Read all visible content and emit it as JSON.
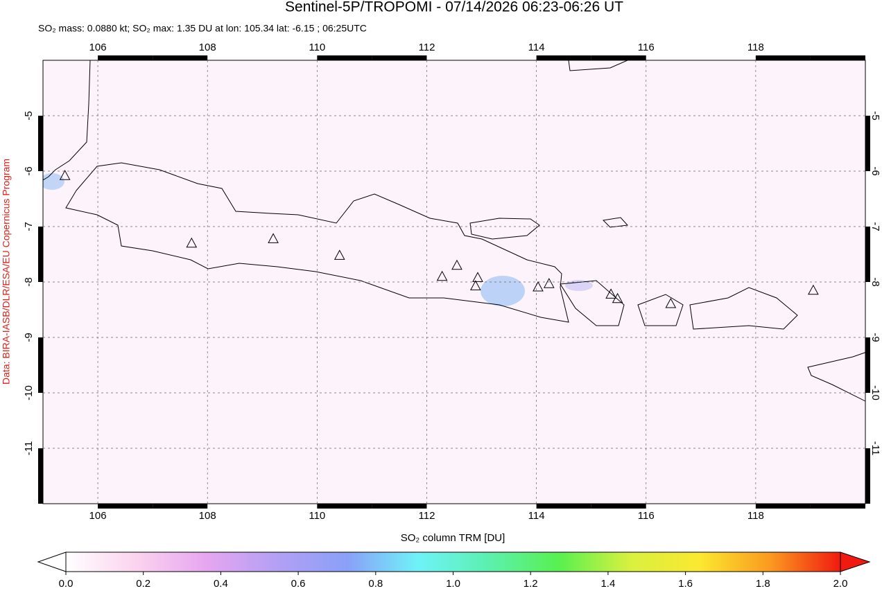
{
  "chart_data": {
    "type": "map",
    "title": "Sentinel-5P/TROPOMI - 07/14/2026 06:23-06:26 UT",
    "subtitle": "SO₂ mass: 0.0880 kt; SO₂ max: 1.35 DU at lon: 105.34 lat: -6.15 ; 06:25UTC",
    "credit": "Data: BIRA-IASB/DLR/ESA/EU Copernicus Program",
    "xlim": [
      105,
      120
    ],
    "ylim": [
      -12,
      -4
    ],
    "xticks": [
      106,
      108,
      110,
      112,
      114,
      116,
      118
    ],
    "yticks": [
      -5,
      -6,
      -7,
      -8,
      -9,
      -10,
      -11
    ],
    "grid": true,
    "volcanoes": {
      "lon": [
        105.4,
        107.71,
        109.2,
        110.41,
        112.28,
        112.55,
        112.93,
        112.89,
        114.03,
        114.23,
        115.36,
        115.48,
        116.45,
        119.05
      ],
      "lat": [
        -6.09,
        -7.31,
        -7.23,
        -7.53,
        -7.91,
        -7.71,
        -7.93,
        -8.08,
        -8.1,
        -8.04,
        -8.23,
        -8.31,
        -8.4,
        -8.16
      ]
    },
    "colorbar": {
      "label": "SO₂ column TRM [DU]",
      "lim": [
        0,
        2
      ],
      "ticks": [
        {
          "value": 0,
          "label": "0.0"
        },
        0.2,
        0.4,
        0.6,
        0.8,
        {
          "value": 1,
          "label": "1.0"
        },
        1.2,
        1.4,
        1.6,
        1.8,
        {
          "value": 2,
          "label": "2.0"
        }
      ],
      "colors": [
        "#ffffff",
        "#fbd3ef",
        "#e6a6f0",
        "#b3a0f4",
        "#8aa0f8",
        "#6ff2f8",
        "#5cf0b0",
        "#58f050",
        "#d8f040",
        "#fbe830",
        "#fb9a20",
        "#f01a10"
      ]
    }
  }
}
